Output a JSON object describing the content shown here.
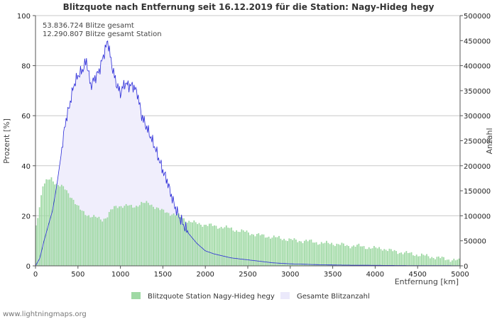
{
  "chart_data": {
    "type": "bar",
    "title": "Blitzquote nach Entfernung seit 16.12.2019 für die Station: Nagy-Hideg hegy",
    "annotations": [
      "53.836.724 Blitze gesamt",
      "12.290.807 Blitze gesamt Station"
    ],
    "xlabel": "Entfernung   [km]",
    "ylabel_left": "Prozent   [%]",
    "ylabel_right": "Anzahl",
    "xlim": [
      0,
      5000
    ],
    "ylim_left": [
      0,
      100
    ],
    "ylim_right": [
      0,
      500000
    ],
    "x_ticks": [
      "0",
      "500",
      "1000",
      "1500",
      "2000",
      "2500",
      "3000",
      "3500",
      "4000",
      "4500",
      "5000"
    ],
    "y_left_ticks": [
      "0",
      "20",
      "40",
      "60",
      "80",
      "100"
    ],
    "y_right_ticks": [
      "0",
      "50000",
      "100000",
      "150000",
      "200000",
      "250000",
      "300000",
      "350000",
      "400000",
      "450000",
      "500000"
    ],
    "series": [
      {
        "name": "Blitzquote Station Nagy-Hideg hegy",
        "axis": "left",
        "color": "#9fd9a4",
        "x": [
          0,
          50,
          100,
          150,
          200,
          250,
          300,
          350,
          400,
          450,
          500,
          550,
          600,
          650,
          700,
          750,
          800,
          850,
          900,
          950,
          1000,
          1050,
          1100,
          1150,
          1200,
          1250,
          1300,
          1350,
          1400,
          1450,
          1500,
          1550,
          1600,
          1650,
          1700,
          1750,
          1800,
          1900,
          2000,
          2100,
          2200,
          2300,
          2400,
          2500,
          2600,
          2700,
          2800,
          2900,
          3000,
          3100,
          3200,
          3300,
          3400,
          3500,
          3600,
          3700,
          3800,
          3900,
          4000,
          4100,
          4200,
          4300,
          4400,
          4500,
          4600,
          4700,
          4800,
          4900,
          5000
        ],
        "values": [
          12,
          22,
          32,
          34,
          35,
          33,
          32,
          31,
          29,
          27,
          24,
          22,
          21,
          20,
          19.5,
          19,
          18.5,
          19.5,
          22,
          23.5,
          24,
          24,
          24,
          23.5,
          24,
          25,
          25,
          25,
          24,
          23,
          22,
          21.5,
          21,
          20.5,
          20,
          19,
          18,
          17,
          16.5,
          16,
          15.5,
          15,
          14,
          13.5,
          12.5,
          12,
          11.5,
          11,
          10.5,
          10,
          10,
          9.5,
          9,
          9,
          8.5,
          8,
          8,
          7.5,
          7,
          7,
          6,
          5.5,
          5,
          4.5,
          4,
          3.5,
          3,
          2.5,
          2
        ]
      },
      {
        "name": "Gesamte Blitzanzahl",
        "axis": "right",
        "color": "#2a2ad8",
        "fill": "#f0eefc",
        "x": [
          0,
          50,
          100,
          150,
          200,
          250,
          300,
          350,
          400,
          450,
          500,
          550,
          600,
          650,
          700,
          750,
          800,
          850,
          900,
          950,
          1000,
          1050,
          1100,
          1150,
          1200,
          1250,
          1300,
          1350,
          1400,
          1450,
          1500,
          1550,
          1600,
          1650,
          1700,
          1750,
          1800,
          1900,
          2000,
          2100,
          2200,
          2300,
          2400,
          2500,
          2600,
          2700,
          2800,
          2900,
          3000,
          3200,
          3400,
          3600,
          3800,
          4000,
          4200,
          4400,
          4600,
          4800,
          5000
        ],
        "values": [
          0,
          15000,
          50000,
          80000,
          110000,
          160000,
          220000,
          285000,
          320000,
          360000,
          380000,
          390000,
          410000,
          360000,
          375000,
          390000,
          420000,
          450000,
          400000,
          365000,
          345000,
          365000,
          360000,
          360000,
          345000,
          300000,
          280000,
          260000,
          240000,
          215000,
          190000,
          170000,
          140000,
          115000,
          95000,
          80000,
          65000,
          45000,
          30000,
          24000,
          20000,
          16000,
          14000,
          12000,
          10000,
          8000,
          6000,
          5000,
          4000,
          3000,
          2000,
          1500,
          1200,
          1000,
          800,
          600,
          500,
          400,
          300
        ]
      }
    ],
    "legend": [
      {
        "label": "Blitzquote Station Nagy-Hideg hegy",
        "swatch": "#9fd9a4"
      },
      {
        "label": "Gesamte Blitzanzahl",
        "swatch": "#ebe9fb"
      }
    ]
  },
  "footer": "www.lightningmaps.org"
}
